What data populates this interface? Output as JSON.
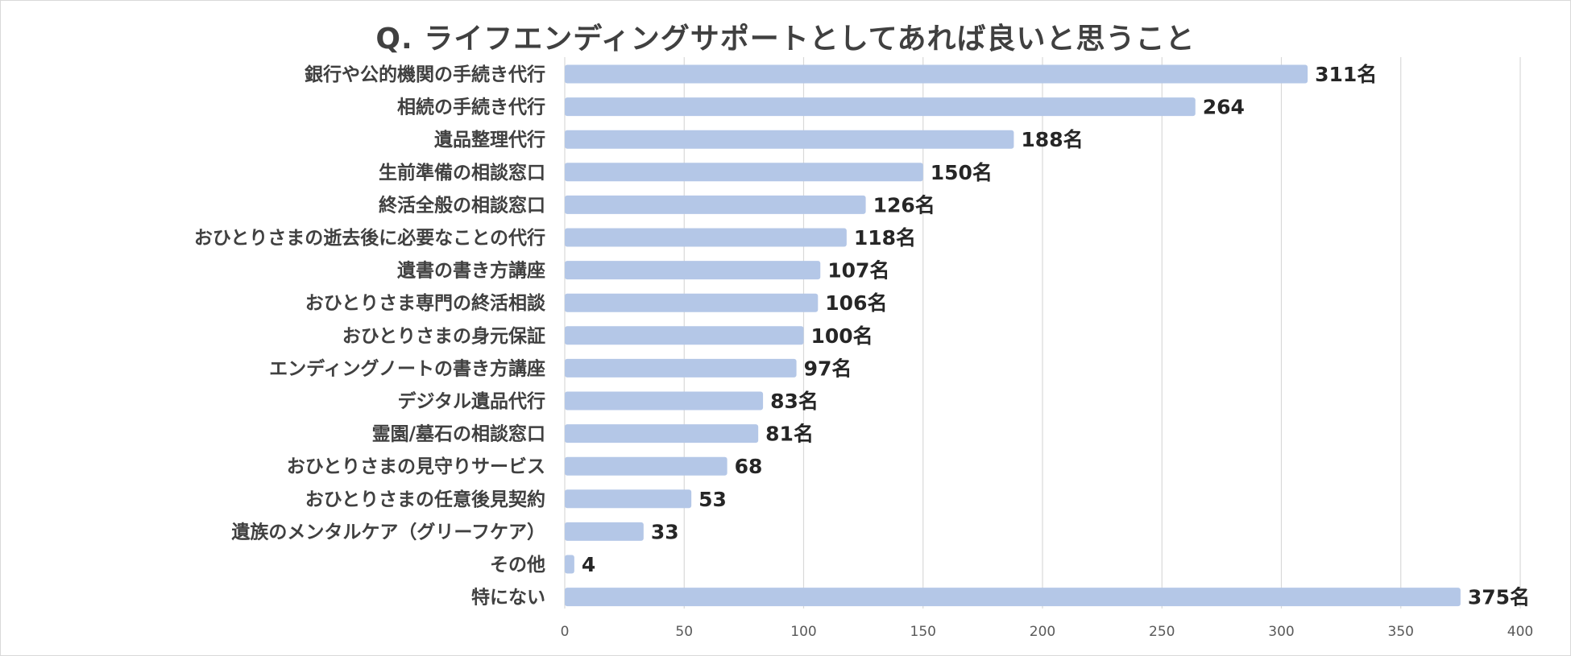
{
  "chart_data": {
    "type": "bar",
    "orientation": "horizontal",
    "title": "Q. ライフエンディングサポートとしてあれば良いと思うこと",
    "categories": [
      "銀行や公的機関の手続き代行",
      "相続の手続き代行",
      "遺品整理代行",
      "生前準備の相談窓口",
      "終活全般の相談窓口",
      "おひとりさまの逝去後に必要なことの代行",
      "遺書の書き方講座",
      "おひとりさま専門の終活相談",
      "おひとりさまの身元保証",
      "エンディングノートの書き方講座",
      "デジタル遺品代行",
      "霊園/墓石の相談窓口",
      "おひとりさまの見守りサービス",
      "おひとりさまの任意後見契約",
      "遺族のメンタルケア（グリーフケア）",
      "その他",
      "特にない"
    ],
    "values": [
      311,
      264,
      188,
      150,
      126,
      118,
      107,
      106,
      100,
      97,
      83,
      81,
      68,
      53,
      33,
      4,
      375
    ],
    "data_labels": [
      "311名",
      "264",
      "188名",
      "150名",
      "126名",
      "118名",
      "107名",
      "106名",
      "100名",
      "97名",
      "83名",
      "81名",
      "68",
      "53",
      "33",
      "4",
      "375名"
    ],
    "xlim": [
      0,
      400
    ],
    "xticks": [
      0,
      50,
      100,
      150,
      200,
      250,
      300,
      350,
      400
    ],
    "xtick_labels": [
      "0",
      "50",
      "100",
      "150",
      "200",
      "250",
      "300",
      "350",
      "400"
    ],
    "grid": true,
    "xlabel": "",
    "ylabel": "",
    "colors": {
      "bar": "#b4c7e7",
      "grid": "#d9d9d9"
    }
  }
}
